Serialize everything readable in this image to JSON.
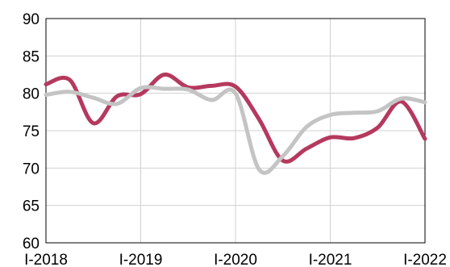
{
  "chart_data": {
    "type": "line",
    "title": "",
    "xlabel": "",
    "ylabel": "",
    "x_tick_labels": [
      "I-2018",
      "I-2019",
      "I-2020",
      "I-2021",
      "I-2022"
    ],
    "x": [
      2018.0,
      2018.25,
      2018.5,
      2018.75,
      2019.0,
      2019.25,
      2019.5,
      2019.75,
      2020.0,
      2020.25,
      2020.5,
      2020.75,
      2021.0,
      2021.25,
      2021.5,
      2021.75,
      2022.0
    ],
    "xlim": [
      2018.0,
      2022.0
    ],
    "ylim": [
      60,
      90
    ],
    "y_ticks": [
      60,
      65,
      70,
      75,
      80,
      85,
      90
    ],
    "grid": true,
    "legend": "none",
    "series": [
      {
        "color": "#b5395e",
        "values": [
          81.2,
          81.8,
          76.0,
          79.6,
          79.9,
          82.5,
          80.8,
          81.0,
          80.9,
          76.5,
          71.0,
          72.6,
          74.1,
          74.0,
          75.4,
          78.9,
          73.9
        ]
      },
      {
        "color": "#c4c4c4",
        "values": [
          79.8,
          80.2,
          79.4,
          78.6,
          80.7,
          80.6,
          80.5,
          79.1,
          80.0,
          69.8,
          71.6,
          75.5,
          77.1,
          77.4,
          77.6,
          79.3,
          78.8
        ]
      }
    ]
  }
}
